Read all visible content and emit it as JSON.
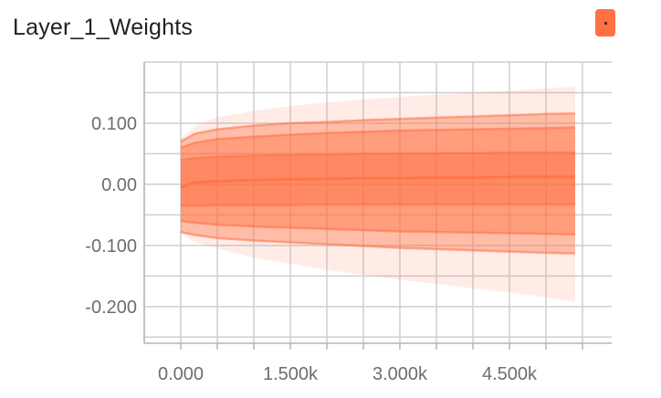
{
  "chart_data": {
    "type": "area",
    "title": "Layer_1_Weights",
    "xlabel": "",
    "ylabel": "",
    "x_ticks": [
      {
        "value": 0,
        "label": "0.000"
      },
      {
        "value": 1500,
        "label": "1.500k"
      },
      {
        "value": 3000,
        "label": "3.000k"
      },
      {
        "value": 4500,
        "label": "4.500k"
      }
    ],
    "y_ticks": [
      {
        "value": 0.1,
        "label": "0.100"
      },
      {
        "value": 0.0,
        "label": "0.00"
      },
      {
        "value": -0.1,
        "label": "-0.100"
      },
      {
        "value": -0.2,
        "label": "-0.200"
      }
    ],
    "xlim": [
      -500,
      5900
    ],
    "ylim": [
      -0.26,
      0.2
    ],
    "grid": true,
    "color": "#ff7043",
    "x": [
      0,
      200,
      500,
      1000,
      1500,
      2000,
      2500,
      3000,
      3500,
      4000,
      4500,
      5000,
      5400
    ],
    "bands": [
      {
        "lower": [
          -0.08,
          -0.095,
          -0.105,
          -0.12,
          -0.13,
          -0.14,
          -0.148,
          -0.156,
          -0.163,
          -0.17,
          -0.177,
          -0.185,
          -0.192
        ],
        "upper": [
          0.075,
          0.095,
          0.11,
          0.12,
          0.128,
          0.134,
          0.139,
          0.143,
          0.147,
          0.15,
          0.153,
          0.157,
          0.16
        ]
      },
      {
        "lower": [
          -0.078,
          -0.083,
          -0.088,
          -0.092,
          -0.095,
          -0.098,
          -0.101,
          -0.104,
          -0.106,
          -0.108,
          -0.11,
          -0.112,
          -0.113
        ],
        "upper": [
          0.07,
          0.083,
          0.09,
          0.096,
          0.1,
          0.102,
          0.105,
          0.107,
          0.109,
          0.111,
          0.113,
          0.115,
          0.116
        ]
      },
      {
        "lower": [
          -0.06,
          -0.063,
          -0.066,
          -0.069,
          -0.071,
          -0.073,
          -0.075,
          -0.077,
          -0.078,
          -0.079,
          -0.08,
          -0.081,
          -0.082
        ],
        "upper": [
          0.06,
          0.068,
          0.074,
          0.078,
          0.081,
          0.084,
          0.086,
          0.088,
          0.089,
          0.09,
          0.091,
          0.092,
          0.093
        ]
      },
      {
        "lower": [
          -0.035,
          -0.035,
          -0.034,
          -0.034,
          -0.034,
          -0.033,
          -0.033,
          -0.033,
          -0.033,
          -0.033,
          -0.033,
          -0.033,
          -0.033
        ],
        "upper": [
          0.04,
          0.043,
          0.045,
          0.047,
          0.048,
          0.049,
          0.05,
          0.05,
          0.051,
          0.051,
          0.052,
          0.052,
          0.052
        ]
      }
    ],
    "median": [
      -0.005,
      0.003,
      0.005,
      0.007,
      0.008,
      0.009,
      0.01,
      0.01,
      0.011,
      0.011,
      0.012,
      0.012,
      0.012
    ]
  }
}
